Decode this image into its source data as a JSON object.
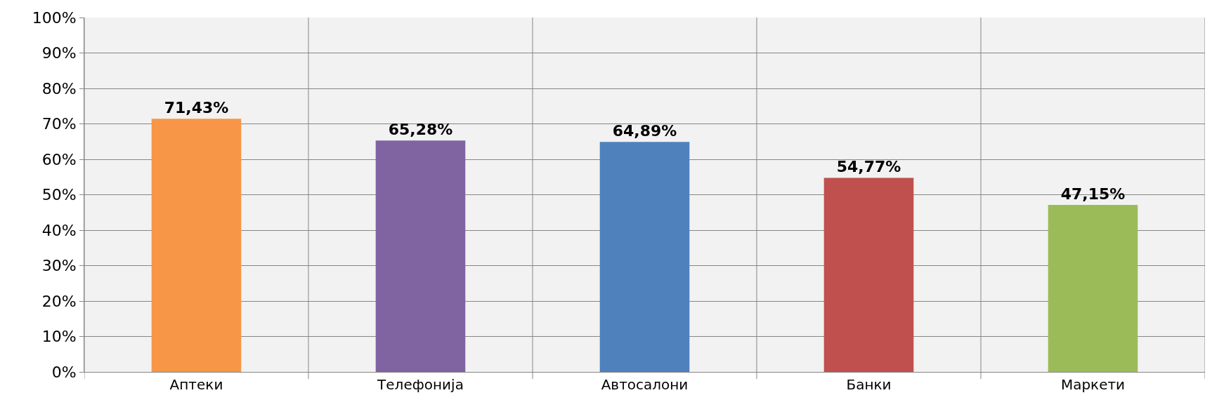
{
  "chart_data": {
    "type": "bar",
    "categories": [
      "Аптеки",
      "Телефонија",
      "Автосалони",
      "Банки",
      "Маркети"
    ],
    "values": [
      71.43,
      65.28,
      64.89,
      54.77,
      47.15
    ],
    "value_labels": [
      "71,43%",
      "65,28%",
      "64,89%",
      "54,77%",
      "47,15%"
    ],
    "colors": [
      "#f79646",
      "#8064a2",
      "#4f81bd",
      "#c0504d",
      "#9bbb59"
    ],
    "ylim": [
      0,
      100
    ],
    "yticks": [
      {
        "value": 0,
        "label": "0%"
      },
      {
        "value": 10,
        "label": "10%"
      },
      {
        "value": 20,
        "label": "20%"
      },
      {
        "value": 30,
        "label": "30%"
      },
      {
        "value": 40,
        "label": "40%"
      },
      {
        "value": 50,
        "label": "50%"
      },
      {
        "value": 60,
        "label": "60%"
      },
      {
        "value": 70,
        "label": "70%"
      },
      {
        "value": 80,
        "label": "80%"
      },
      {
        "value": 90,
        "label": "90%"
      },
      {
        "value": 100,
        "label": "100%"
      }
    ],
    "grid": true
  }
}
